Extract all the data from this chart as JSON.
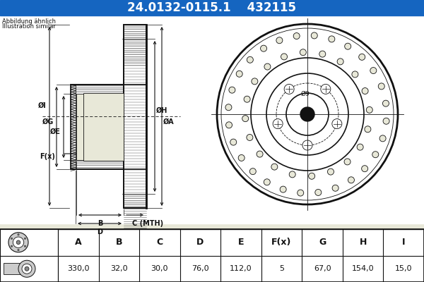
{
  "title_part": "24.0132-0115.1",
  "title_code": "432115",
  "title_bg": "#1565c0",
  "title_fg": "#ffffff",
  "note_line1": "Abbildung ähnlich",
  "note_line2": "Illustration similar",
  "table_headers": [
    "A",
    "B",
    "C",
    "D",
    "E",
    "F(x)",
    "G",
    "H",
    "I"
  ],
  "table_values": [
    "330,0",
    "32,0",
    "30,0",
    "76,0",
    "112,0",
    "5",
    "67,0",
    "154,0",
    "15,0"
  ],
  "bg_color": "#e8e8d8",
  "drawing_color": "#111111",
  "hatch_color": "#666666",
  "white_bg": "#ffffff"
}
